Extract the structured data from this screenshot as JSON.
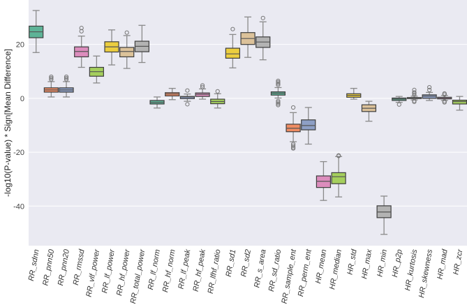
{
  "chart_data": {
    "type": "box",
    "title": "",
    "xlabel": "",
    "ylabel": "-log10(P-value) * Sign[Mean Difference]",
    "ylim": [
      -54.7,
      36.5
    ],
    "yticks": [
      20,
      0,
      -20,
      -40
    ],
    "grid": true,
    "palette": [
      "#5eb397",
      "#ef8c63",
      "#8d9fc5",
      "#dc8dbd",
      "#a5cf5d",
      "#ecce3f",
      "#dcc29a",
      "#b3b3b3"
    ],
    "categories": [
      "RR_sdnn",
      "RR_pnn50",
      "RR_pnn20",
      "RR_rmssd",
      "RR_vlf_power",
      "RR_lf_power",
      "RR_hf_power",
      "RR_total_power",
      "RR_lf_norm",
      "RR_hf_norm",
      "RR_lf_peak",
      "RR_hf_peak",
      "RR_lfhf_ratio",
      "RR_sd1",
      "RR_sd2",
      "RR_s_area",
      "RR_sd_ratio",
      "RR_sample_ent",
      "RR_perm_ent",
      "HR_mean",
      "HR_median",
      "HR_std",
      "HR_max",
      "HR_min",
      "HR_p2p",
      "HR_kurtosis",
      "HR_skewness",
      "HR_mad",
      "HR_zcr"
    ],
    "boxes": [
      {
        "whislo": 17.0,
        "q1": 22.5,
        "med": 24.7,
        "q3": 26.8,
        "whishi": 32.6,
        "fliers": []
      },
      {
        "whislo": 0.5,
        "q1": 2.3,
        "med": 3.1,
        "q3": 3.9,
        "whishi": 6.2,
        "fliers": [
          7.0,
          7.5,
          8.0
        ]
      },
      {
        "whislo": 0.5,
        "q1": 2.3,
        "med": 3.1,
        "q3": 3.9,
        "whishi": 6.2,
        "fliers": [
          7.0,
          7.5,
          8.0
        ]
      },
      {
        "whislo": 11.5,
        "q1": 15.4,
        "med": 17.4,
        "q3": 19.1,
        "whishi": 23.1,
        "fliers": [
          24.9,
          26.1
        ]
      },
      {
        "whislo": 5.7,
        "q1": 8.2,
        "med": 9.9,
        "q3": 11.5,
        "whishi": 15.7,
        "fliers": []
      },
      {
        "whislo": 12.4,
        "q1": 17.2,
        "med": 19.1,
        "q3": 21.0,
        "whishi": 25.4,
        "fliers": []
      },
      {
        "whislo": 11.1,
        "q1": 15.4,
        "med": 17.4,
        "q3": 18.9,
        "whishi": 23.3,
        "fliers": [
          24.4
        ]
      },
      {
        "whislo": 13.3,
        "q1": 17.3,
        "med": 19.3,
        "q3": 21.2,
        "whishi": 27.1,
        "fliers": []
      },
      {
        "whislo": -3.6,
        "q1": -2.1,
        "med": -1.5,
        "q3": -0.8,
        "whishi": 0.5,
        "fliers": []
      },
      {
        "whislo": -0.5,
        "q1": 0.9,
        "med": 1.6,
        "q3": 2.1,
        "whishi": 3.7,
        "fliers": []
      },
      {
        "whislo": -1.1,
        "q1": -0.1,
        "med": 0.5,
        "q3": 0.7,
        "whishi": 1.6,
        "fliers": [
          2.9,
          -2.2
        ]
      },
      {
        "whislo": -0.3,
        "q1": 0.7,
        "med": 1.5,
        "q3": 2.0,
        "whishi": 3.5,
        "fliers": [
          4.2,
          4.8
        ]
      },
      {
        "whislo": -3.6,
        "q1": -2.0,
        "med": -1.2,
        "q3": -0.3,
        "whishi": 1.7,
        "fliers": [
          2.6
        ]
      },
      {
        "whislo": 11.3,
        "q1": 14.9,
        "med": 16.5,
        "q3": 18.6,
        "whishi": 23.7,
        "fliers": [
          25.7
        ]
      },
      {
        "whislo": 15.2,
        "q1": 20.0,
        "med": 22.2,
        "q3": 24.4,
        "whishi": 30.2,
        "fliers": []
      },
      {
        "whislo": 14.3,
        "q1": 18.9,
        "med": 20.9,
        "q3": 22.8,
        "whishi": 28.4,
        "fliers": [
          29.8
        ]
      },
      {
        "whislo": 0.1,
        "q1": 1.2,
        "med": 1.9,
        "q3": 2.4,
        "whishi": 4.0,
        "fliers": [
          5.0,
          5.5,
          6.0,
          6.5,
          -1.0,
          -1.5,
          -2.0,
          -2.5
        ]
      },
      {
        "whislo": -16.1,
        "q1": -12.4,
        "med": -11.1,
        "q3": -9.6,
        "whishi": -5.3,
        "fliers": [
          -3.4,
          -17.0,
          -17.6,
          -18.2,
          -18.6
        ]
      },
      {
        "whislo": -17.0,
        "q1": -11.7,
        "med": -10.1,
        "q3": -8.0,
        "whishi": -3.4,
        "fliers": []
      },
      {
        "whislo": -37.9,
        "q1": -33.1,
        "med": -30.8,
        "q3": -28.8,
        "whishi": -23.5,
        "fliers": []
      },
      {
        "whislo": -36.6,
        "q1": -31.7,
        "med": -29.1,
        "q3": -27.6,
        "whishi": -21.6,
        "fliers": [
          -21.2,
          -21.4
        ]
      },
      {
        "whislo": -0.3,
        "q1": 0.4,
        "med": 1.1,
        "q3": 1.7,
        "whishi": 3.7,
        "fliers": []
      },
      {
        "whislo": -8.5,
        "q1": -4.9,
        "med": -3.7,
        "q3": -2.4,
        "whishi": -1.1,
        "fliers": []
      },
      {
        "whislo": -50.5,
        "q1": -44.3,
        "med": -42.2,
        "q3": -39.9,
        "whishi": -36.3,
        "fliers": []
      },
      {
        "whislo": -1.5,
        "q1": -0.8,
        "med": -0.3,
        "q3": 0.1,
        "whishi": 0.7,
        "fliers": [
          -2.3
        ]
      },
      {
        "whislo": -0.6,
        "q1": -0.1,
        "med": 0.1,
        "q3": 0.3,
        "whishi": 0.8,
        "fliers": [
          1.3,
          1.8,
          2.2,
          3.1,
          -0.9,
          -1.3
        ]
      },
      {
        "whislo": -0.8,
        "q1": 0.0,
        "med": 0.8,
        "q3": 1.3,
        "whishi": 2.2,
        "fliers": [
          3.1,
          4.1
        ]
      },
      {
        "whislo": -0.8,
        "q1": -0.2,
        "med": 0.2,
        "q3": 0.4,
        "whishi": 1.1,
        "fliers": [
          1.4,
          1.8,
          -1.1,
          -1.5
        ]
      },
      {
        "whislo": -4.4,
        "q1": -2.1,
        "med": -1.2,
        "q3": -0.7,
        "whishi": 0.7,
        "fliers": []
      }
    ]
  }
}
